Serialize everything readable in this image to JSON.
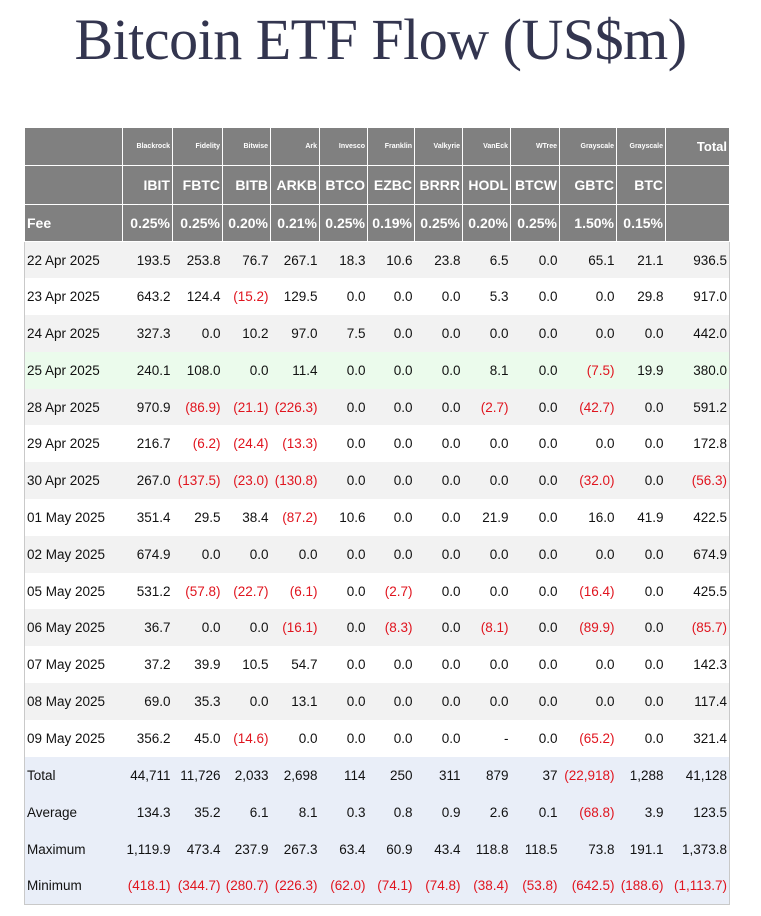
{
  "title": "Bitcoin ETF Flow (US$m)",
  "table": {
    "header": {
      "issuers": [
        "Blackrock",
        "Fidelity",
        "Bitwise",
        "Ark",
        "Invesco",
        "Franklin",
        "Valkyrie",
        "VanEck",
        "WTree",
        "Grayscale",
        "Grayscale"
      ],
      "total_label": "Total",
      "tickers": [
        "IBIT",
        "FBTC",
        "BITB",
        "ARKB",
        "BTCO",
        "EZBC",
        "BRRR",
        "HODL",
        "BTCW",
        "GBTC",
        "BTC"
      ],
      "fee_label": "Fee",
      "fees": [
        "0.25%",
        "0.25%",
        "0.20%",
        "0.21%",
        "0.25%",
        "0.19%",
        "0.25%",
        "0.20%",
        "0.25%",
        "1.50%",
        "0.15%"
      ]
    },
    "rows": [
      {
        "label": "22 Apr 2025",
        "values": [
          "193.5",
          "253.8",
          "76.7",
          "267.1",
          "18.3",
          "10.6",
          "23.8",
          "6.5",
          "0.0",
          "65.1",
          "21.1",
          "936.5"
        ]
      },
      {
        "label": "23 Apr 2025",
        "values": [
          "643.2",
          "124.4",
          "(15.2)",
          "129.5",
          "0.0",
          "0.0",
          "0.0",
          "5.3",
          "0.0",
          "0.0",
          "29.8",
          "917.0"
        ]
      },
      {
        "label": "24 Apr 2025",
        "values": [
          "327.3",
          "0.0",
          "10.2",
          "97.0",
          "7.5",
          "0.0",
          "0.0",
          "0.0",
          "0.0",
          "0.0",
          "0.0",
          "442.0"
        ]
      },
      {
        "label": "25 Apr 2025",
        "values": [
          "240.1",
          "108.0",
          "0.0",
          "11.4",
          "0.0",
          "0.0",
          "0.0",
          "8.1",
          "0.0",
          "(7.5)",
          "19.9",
          "380.0"
        ]
      },
      {
        "label": "28 Apr 2025",
        "values": [
          "970.9",
          "(86.9)",
          "(21.1)",
          "(226.3)",
          "0.0",
          "0.0",
          "0.0",
          "(2.7)",
          "0.0",
          "(42.7)",
          "0.0",
          "591.2"
        ]
      },
      {
        "label": "29 Apr 2025",
        "values": [
          "216.7",
          "(6.2)",
          "(24.4)",
          "(13.3)",
          "0.0",
          "0.0",
          "0.0",
          "0.0",
          "0.0",
          "0.0",
          "0.0",
          "172.8"
        ]
      },
      {
        "label": "30 Apr 2025",
        "values": [
          "267.0",
          "(137.5)",
          "(23.0)",
          "(130.8)",
          "0.0",
          "0.0",
          "0.0",
          "0.0",
          "0.0",
          "(32.0)",
          "0.0",
          "(56.3)"
        ]
      },
      {
        "label": "01 May 2025",
        "values": [
          "351.4",
          "29.5",
          "38.4",
          "(87.2)",
          "10.6",
          "0.0",
          "0.0",
          "21.9",
          "0.0",
          "16.0",
          "41.9",
          "422.5"
        ]
      },
      {
        "label": "02 May 2025",
        "values": [
          "674.9",
          "0.0",
          "0.0",
          "0.0",
          "0.0",
          "0.0",
          "0.0",
          "0.0",
          "0.0",
          "0.0",
          "0.0",
          "674.9"
        ]
      },
      {
        "label": "05 May 2025",
        "values": [
          "531.2",
          "(57.8)",
          "(22.7)",
          "(6.1)",
          "0.0",
          "(2.7)",
          "0.0",
          "0.0",
          "0.0",
          "(16.4)",
          "0.0",
          "425.5"
        ]
      },
      {
        "label": "06 May 2025",
        "values": [
          "36.7",
          "0.0",
          "0.0",
          "(16.1)",
          "0.0",
          "(8.3)",
          "0.0",
          "(8.1)",
          "0.0",
          "(89.9)",
          "0.0",
          "(85.7)"
        ]
      },
      {
        "label": "07 May 2025",
        "values": [
          "37.2",
          "39.9",
          "10.5",
          "54.7",
          "0.0",
          "0.0",
          "0.0",
          "0.0",
          "0.0",
          "0.0",
          "0.0",
          "142.3"
        ]
      },
      {
        "label": "08 May 2025",
        "values": [
          "69.0",
          "35.3",
          "0.0",
          "13.1",
          "0.0",
          "0.0",
          "0.0",
          "0.0",
          "0.0",
          "0.0",
          "0.0",
          "117.4"
        ]
      },
      {
        "label": "09 May 2025",
        "values": [
          "356.2",
          "45.0",
          "(14.6)",
          "0.0",
          "0.0",
          "0.0",
          "0.0",
          "-",
          "0.0",
          "(65.2)",
          "0.0",
          "321.4"
        ]
      }
    ],
    "summary": [
      {
        "label": "Total",
        "values": [
          "44,711",
          "11,726",
          "2,033",
          "2,698",
          "114",
          "250",
          "311",
          "879",
          "37",
          "(22,918)",
          "1,288",
          "41,128"
        ]
      },
      {
        "label": "Average",
        "values": [
          "134.3",
          "35.2",
          "6.1",
          "8.1",
          "0.3",
          "0.8",
          "0.9",
          "2.6",
          "0.1",
          "(68.8)",
          "3.9",
          "123.5"
        ]
      },
      {
        "label": "Maximum",
        "values": [
          "1,119.9",
          "473.4",
          "237.9",
          "267.3",
          "63.4",
          "60.9",
          "43.4",
          "118.8",
          "118.5",
          "73.8",
          "191.1",
          "1,373.8"
        ]
      },
      {
        "label": "Minimum",
        "values": [
          "(418.1)",
          "(344.7)",
          "(280.7)",
          "(226.3)",
          "(62.0)",
          "(74.1)",
          "(74.8)",
          "(38.4)",
          "(53.8)",
          "(642.5)",
          "(188.6)",
          "(1,113.7)"
        ]
      }
    ]
  }
}
